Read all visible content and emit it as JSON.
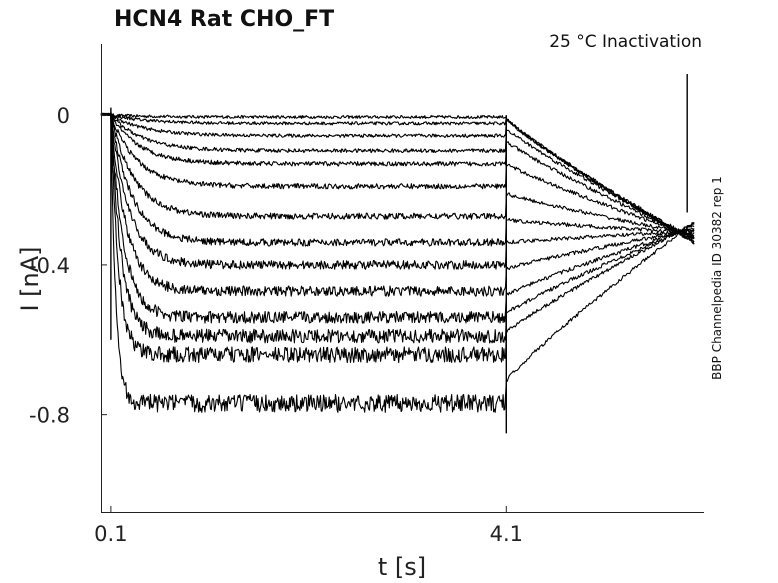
{
  "chart_data": {
    "type": "line",
    "title": "HCN4  Rat  CHO_FT",
    "subtitle": "25 °C  Inactivation",
    "side_note": "BBP Channelpedia ID 30382 rep 1",
    "xlabel": "t [s]",
    "ylabel": "I [nA]",
    "xlim": [
      0,
      6.1
    ],
    "ylim": [
      -1.06,
      0.19
    ],
    "x_ticks": [
      0.1,
      4.1
    ],
    "x_tick_labels": [
      "0.1",
      "4.1"
    ],
    "y_ticks": [
      0,
      -0.4,
      -0.8
    ],
    "y_tick_labels": [
      "0",
      "-0.4",
      "-0.8"
    ],
    "grid": false,
    "step_start_s": 0.1,
    "step_end_s": 4.1,
    "sweep_end_s": 6.0,
    "series": [
      {
        "steady_nA": -0.005,
        "tail_nA": -0.34
      },
      {
        "steady_nA": -0.022,
        "tail_nA": -0.34
      },
      {
        "steady_nA": -0.055,
        "tail_nA": -0.335
      },
      {
        "steady_nA": -0.095,
        "tail_nA": -0.33
      },
      {
        "steady_nA": -0.13,
        "tail_nA": -0.33
      },
      {
        "steady_nA": -0.19,
        "tail_nA": -0.325
      },
      {
        "steady_nA": -0.27,
        "tail_nA": -0.32
      },
      {
        "steady_nA": -0.34,
        "tail_nA": -0.315
      },
      {
        "steady_nA": -0.4,
        "tail_nA": -0.31
      },
      {
        "steady_nA": -0.47,
        "tail_nA": -0.305
      },
      {
        "steady_nA": -0.54,
        "tail_nA": -0.3
      },
      {
        "steady_nA": -0.59,
        "tail_nA": -0.295
      },
      {
        "steady_nA": -0.64,
        "tail_nA": -0.29
      },
      {
        "steady_nA": -0.77,
        "tail_nA": -0.285
      }
    ]
  }
}
